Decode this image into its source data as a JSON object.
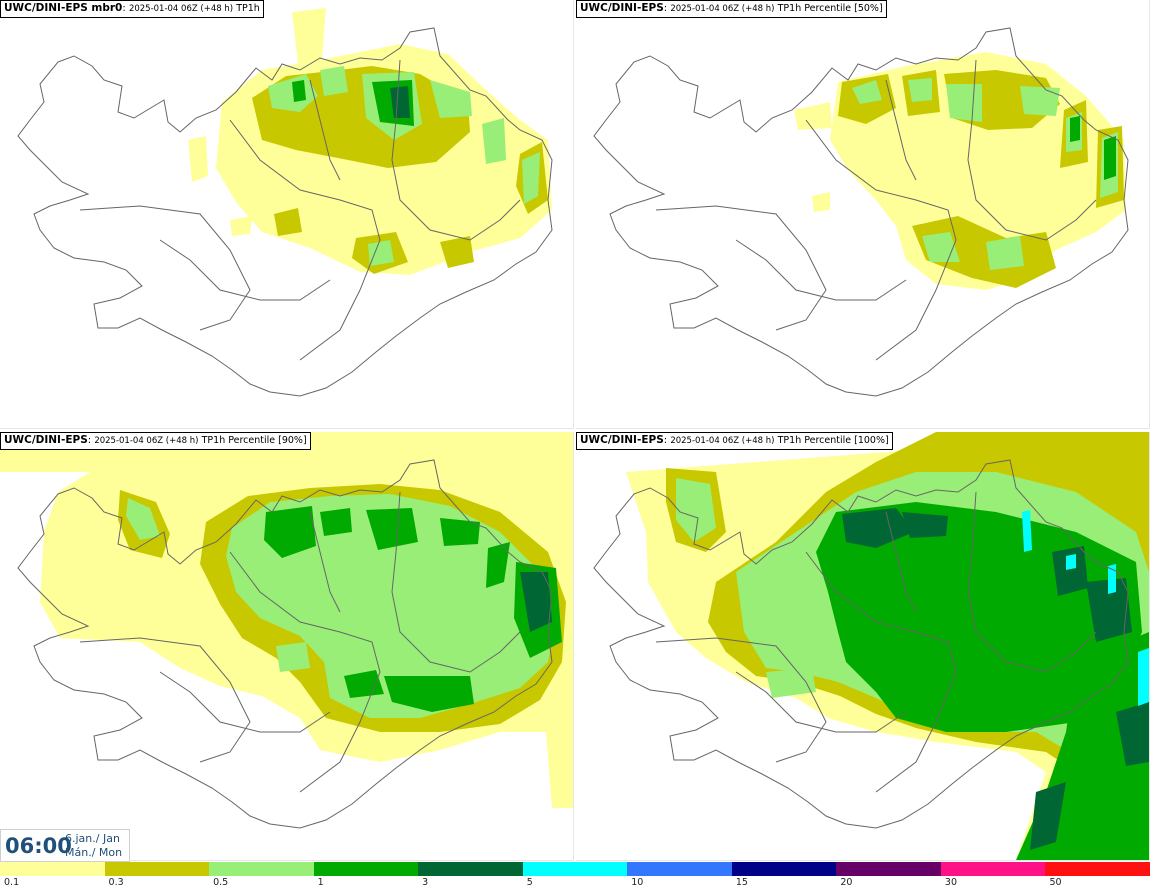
{
  "panels": [
    {
      "id": "mbr0",
      "model": "UWC/DINI-EPS",
      "suffix": " mbr0",
      "run": "2025-01-04 06Z (+48 h)",
      "field": "TP1h"
    },
    {
      "id": "p50",
      "model": "UWC/DINI-EPS",
      "suffix": "",
      "run": "2025-01-04 06Z (+48 h)",
      "field": "TP1h Percentile [50%]"
    },
    {
      "id": "p90",
      "model": "UWC/DINI-EPS",
      "suffix": "",
      "run": "2025-01-04 06Z (+48 h)",
      "field": "TP1h Percentile [90%]"
    },
    {
      "id": "p100",
      "model": "UWC/DINI-EPS",
      "suffix": "",
      "run": "2025-01-04 06Z (+48 h)",
      "field": "TP1h Percentile [100%]"
    }
  ],
  "valid_time": {
    "hour": "06:00",
    "date": "6.jan./ Jan",
    "day": "Mán./ Mon"
  },
  "legend": {
    "ticks": [
      "0.1",
      "0.3",
      "0.5",
      "1",
      "3",
      "5",
      "10",
      "15",
      "20",
      "30",
      "50"
    ],
    "colors": [
      "#ffff99",
      "#c8c800",
      "#99ee77",
      "#00aa00",
      "#006633",
      "#00ffff",
      "#3377ff",
      "#000088",
      "#660066",
      "#ff1188",
      "#ff1111"
    ]
  }
}
